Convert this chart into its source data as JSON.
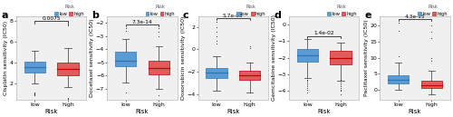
{
  "panels": [
    {
      "label": "a",
      "ylabel": "Cisplatin sensitivity (IC50)",
      "pvalue": "0.0075",
      "ylim": [
        0.5,
        8.5
      ],
      "low_box": {
        "q1": 3.1,
        "median": 3.6,
        "q3": 4.1,
        "whislo": 2.0,
        "whishi": 5.2,
        "fliers": [
          0.9,
          0.95,
          1.0,
          1.05,
          1.1,
          1.15
        ]
      },
      "high_box": {
        "q1": 2.8,
        "median": 3.4,
        "q3": 4.0,
        "whislo": 1.7,
        "whishi": 5.4,
        "fliers": [
          0.6,
          0.65,
          7.6,
          7.7
        ]
      }
    },
    {
      "label": "b",
      "ylabel": "Docetaxel sensitivity (IC50)",
      "pvalue": "7.3e-14",
      "ylim": [
        -7.8,
        -1.5
      ],
      "low_box": {
        "q1": -5.3,
        "median": -4.85,
        "q3": -4.2,
        "whislo": -6.5,
        "whishi": -3.2,
        "fliers": [
          -7.3,
          -2.6,
          -2.4
        ]
      },
      "high_box": {
        "q1": -5.9,
        "median": -5.45,
        "q3": -4.9,
        "whislo": -7.0,
        "whishi": -3.8,
        "fliers": [
          -7.5,
          -3.0,
          -2.7,
          -2.4
        ]
      }
    },
    {
      "label": "c",
      "ylabel": "Doxorubicin sensitivity (IC50)",
      "pvalue": "5.7e-05",
      "ylim": [
        -4.5,
        3.0
      ],
      "low_box": {
        "q1": -2.55,
        "median": -2.1,
        "q3": -1.65,
        "whislo": -3.7,
        "whishi": -0.6,
        "fliers": [
          0.5,
          0.8,
          1.2,
          1.6,
          2.0,
          2.5
        ]
      },
      "high_box": {
        "q1": -2.75,
        "median": -2.35,
        "q3": -1.95,
        "whislo": -3.9,
        "whishi": -1.2,
        "fliers": [
          0.1,
          0.3
        ]
      }
    },
    {
      "label": "d",
      "ylabel": "Gemcitabine sensitivity (IC50)",
      "pvalue": "1.4e-02",
      "ylim": [
        -4.5,
        0.5
      ],
      "low_box": {
        "q1": -2.25,
        "median": -1.85,
        "q3": -1.45,
        "whislo": -3.2,
        "whishi": -0.9,
        "fliers": [
          -4.1,
          -3.9,
          -3.8,
          -3.7,
          -3.6,
          -3.5,
          -3.4,
          -3.3
        ]
      },
      "high_box": {
        "q1": -2.4,
        "median": -2.0,
        "q3": -1.6,
        "whislo": -3.4,
        "whishi": -1.1,
        "fliers": [
          -4.2,
          -4.0,
          -3.9,
          -3.8,
          -3.7,
          -3.6,
          -3.5,
          -3.4,
          -3.3
        ]
      }
    },
    {
      "label": "e",
      "ylabel": "Paclitaxel sensitivity (IC50)",
      "pvalue": "4.3e-15",
      "ylim": [
        -3.0,
        23.0
      ],
      "low_box": {
        "q1": 2.0,
        "median": 3.0,
        "q3": 4.5,
        "whislo": 0.0,
        "whishi": 8.5,
        "fliers": [
          10.5,
          18.5,
          21.0
        ]
      },
      "high_box": {
        "q1": 0.5,
        "median": 1.5,
        "q3": 2.8,
        "whislo": -1.5,
        "whishi": 6.0,
        "fliers": [
          9.0,
          10.0,
          16.0,
          18.0,
          20.0
        ]
      }
    }
  ],
  "low_color": "#5B9BD5",
  "high_color": "#E05C5C",
  "low_edge_color": "#2E75B6",
  "high_edge_color": "#C00000",
  "bg_color": "#F0F0F0",
  "xlabel": "Risk",
  "tick_fontsize": 4.5,
  "ylabel_fontsize": 4.5,
  "xlabel_fontsize": 5.0,
  "pval_fontsize": 4.2,
  "panel_fontsize": 8.0
}
